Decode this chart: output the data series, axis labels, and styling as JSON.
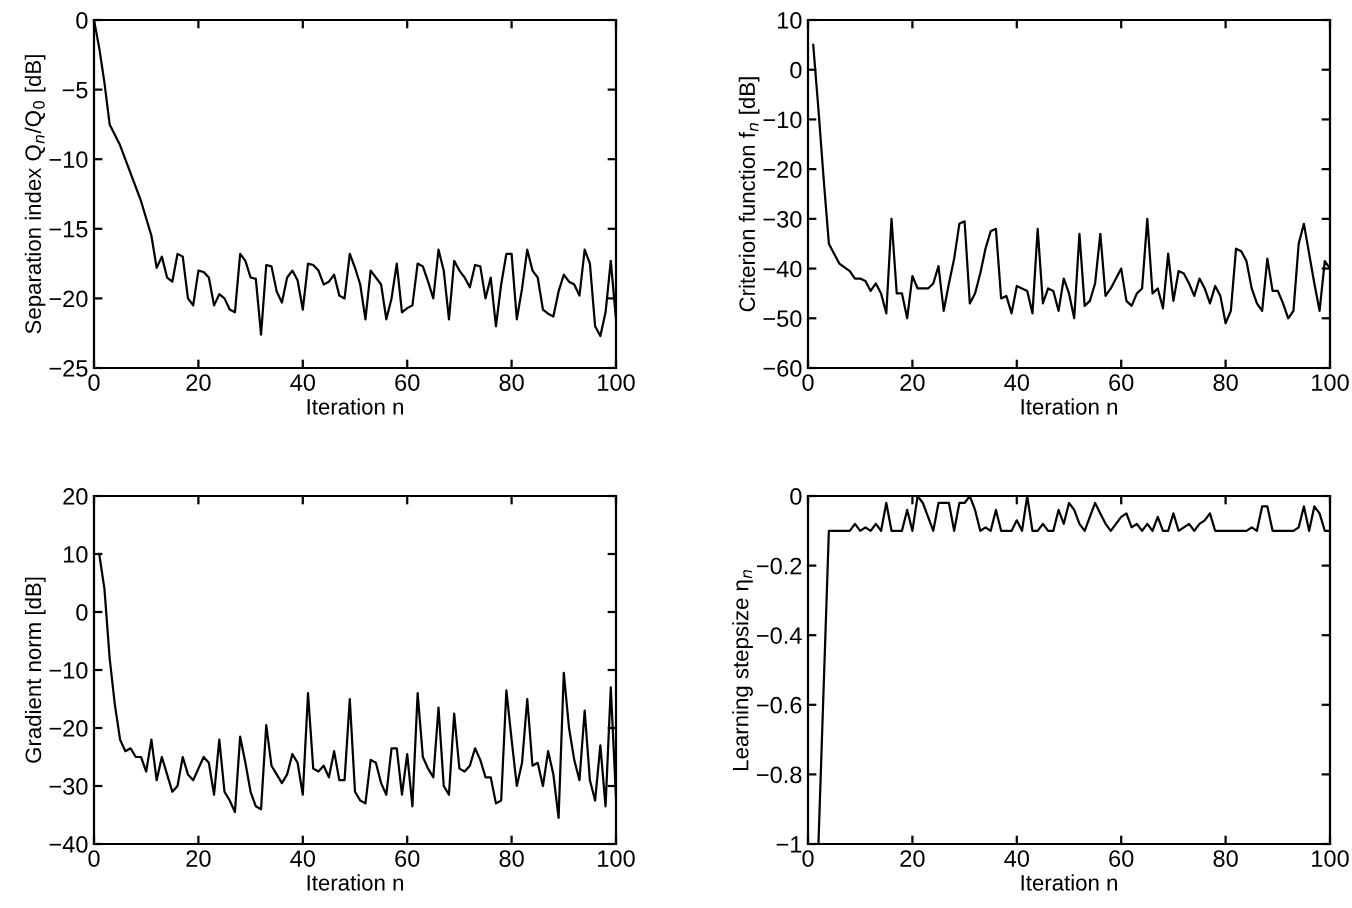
{
  "chart_data": [
    {
      "type": "line",
      "xlabel": "Iteration n",
      "ylabel": "Separation index Q$_{n}$/Q$_{0}$ [dB]",
      "xlim": [
        0,
        100
      ],
      "xticks": [
        0,
        20,
        40,
        60,
        80,
        100
      ],
      "ylim": [
        -25,
        0
      ],
      "yticks": [
        -25,
        -20,
        -15,
        -10,
        -5,
        0
      ],
      "grid": false,
      "series": [
        {
          "color": "#000000",
          "x": [
            0,
            1,
            2,
            3,
            5,
            7,
            9,
            11,
            12,
            13,
            14,
            15,
            16,
            17,
            18,
            19,
            20,
            21,
            22,
            23,
            24,
            25,
            26,
            27,
            28,
            29,
            30,
            31,
            32,
            33,
            34,
            35,
            36,
            37,
            38,
            39,
            40,
            41,
            42,
            43,
            44,
            45,
            46,
            47,
            48,
            49,
            50,
            51,
            52,
            53,
            54,
            55,
            56,
            57,
            58,
            59,
            60,
            61,
            62,
            63,
            64,
            65,
            66,
            67,
            68,
            69,
            70,
            71,
            72,
            73,
            74,
            75,
            76,
            77,
            78,
            79,
            80,
            81,
            82,
            83,
            84,
            85,
            86,
            87,
            88,
            89,
            90,
            91,
            92,
            93,
            94,
            95,
            96,
            97,
            98,
            99,
            100
          ],
          "values": [
            0,
            -2,
            -4.5,
            -7.5,
            -9,
            -11,
            -13,
            -15.5,
            -17.8,
            -17,
            -18.5,
            -18.8,
            -16.8,
            -17,
            -20,
            -20.5,
            -18,
            -18.1,
            -18.5,
            -20.5,
            -19.7,
            -20,
            -20.8,
            -21,
            -16.8,
            -17.3,
            -18.5,
            -18.6,
            -22.6,
            -17.6,
            -17.7,
            -19.5,
            -20.3,
            -18.5,
            -18,
            -18.7,
            -20.8,
            -17.5,
            -17.6,
            -18,
            -19,
            -18.8,
            -18.3,
            -19.8,
            -20,
            -16.8,
            -17.8,
            -19,
            -21.5,
            -18,
            -18.5,
            -19,
            -21.5,
            -20,
            -17.5,
            -21,
            -20.7,
            -20.5,
            -17.5,
            -17.7,
            -18.8,
            -20,
            -16.5,
            -18,
            -21.5,
            -17.3,
            -18,
            -18.5,
            -19.2,
            -17.6,
            -17.7,
            -20,
            -18.5,
            -22,
            -19,
            -16.8,
            -16.8,
            -21.5,
            -19.3,
            -16.5,
            -18,
            -18.5,
            -20.8,
            -21.1,
            -21.3,
            -19.5,
            -18.3,
            -18.8,
            -19,
            -19.8,
            -16.5,
            -17.5,
            -22,
            -22.7,
            -21,
            -17.3,
            -21.5
          ]
        }
      ]
    },
    {
      "type": "line",
      "xlabel": "Iteration n",
      "ylabel": "Criterion function f$_{n}$ [dB]",
      "xlim": [
        0,
        100
      ],
      "xticks": [
        0,
        20,
        40,
        60,
        80,
        100
      ],
      "ylim": [
        -60,
        10
      ],
      "yticks": [
        -60,
        -50,
        -40,
        -30,
        -20,
        -10,
        0,
        10
      ],
      "grid": false,
      "series": [
        {
          "color": "#000000",
          "x": [
            1,
            2,
            3,
            4,
            5,
            6,
            8,
            9,
            10,
            11,
            12,
            13,
            14,
            15,
            16,
            17,
            18,
            19,
            20,
            21,
            22,
            23,
            24,
            25,
            26,
            27,
            28,
            29,
            30,
            31,
            32,
            33,
            34,
            35,
            36,
            37,
            38,
            39,
            40,
            41,
            42,
            43,
            44,
            45,
            46,
            47,
            48,
            49,
            50,
            51,
            52,
            53,
            54,
            55,
            56,
            57,
            58,
            59,
            60,
            61,
            62,
            63,
            64,
            65,
            66,
            67,
            68,
            69,
            70,
            71,
            72,
            73,
            74,
            75,
            76,
            77,
            78,
            79,
            80,
            81,
            82,
            83,
            84,
            85,
            86,
            87,
            88,
            89,
            90,
            91,
            92,
            93,
            94,
            95,
            96,
            97,
            98,
            99,
            100
          ],
          "values": [
            5,
            -8,
            -22,
            -35,
            -37,
            -39,
            -40.5,
            -42,
            -42,
            -42.5,
            -44.5,
            -43,
            -45,
            -49,
            -30,
            -45,
            -45,
            -50,
            -41.5,
            -44,
            -44,
            -44,
            -43,
            -39.5,
            -48.5,
            -43,
            -38,
            -31,
            -30.5,
            -47,
            -45,
            -41,
            -36,
            -32.5,
            -32,
            -46,
            -45.5,
            -49,
            -43.5,
            -44,
            -44.5,
            -49,
            -32,
            -47,
            -44,
            -44.5,
            -48.5,
            -42,
            -45,
            -50,
            -33,
            -47.5,
            -46.5,
            -43,
            -33,
            -45.5,
            -44,
            -42,
            -40,
            -46.5,
            -47.5,
            -45,
            -44,
            -30,
            -45,
            -44,
            -48,
            -37,
            -46.5,
            -40.5,
            -41,
            -43,
            -45.5,
            -42,
            -44,
            -47,
            -43.5,
            -45.5,
            -51,
            -48.5,
            -36,
            -36.5,
            -38.5,
            -44,
            -47,
            -48.5,
            -38,
            -44.5,
            -44.5,
            -47,
            -50,
            -48.5,
            -35,
            -31,
            -37,
            -43,
            -48.5,
            -38.5,
            -40
          ]
        }
      ]
    },
    {
      "type": "line",
      "xlabel": "Iteration n",
      "ylabel": "Gradient norm [dB]",
      "xlim": [
        0,
        100
      ],
      "xticks": [
        0,
        20,
        40,
        60,
        80,
        100
      ],
      "ylim": [
        -40,
        20
      ],
      "yticks": [
        -40,
        -30,
        -20,
        -10,
        0,
        10,
        20
      ],
      "grid": false,
      "series": [
        {
          "color": "#000000",
          "x": [
            1,
            2,
            3,
            4,
            5,
            6,
            7,
            8,
            9,
            10,
            11,
            12,
            13,
            14,
            15,
            16,
            17,
            18,
            19,
            20,
            21,
            22,
            23,
            24,
            25,
            26,
            27,
            28,
            29,
            30,
            31,
            32,
            33,
            34,
            35,
            36,
            37,
            38,
            39,
            40,
            41,
            42,
            43,
            44,
            45,
            46,
            47,
            48,
            49,
            50,
            51,
            52,
            53,
            54,
            55,
            56,
            57,
            58,
            59,
            60,
            61,
            62,
            63,
            64,
            65,
            66,
            67,
            68,
            69,
            70,
            71,
            72,
            73,
            74,
            75,
            76,
            77,
            78,
            79,
            80,
            81,
            82,
            83,
            84,
            85,
            86,
            87,
            88,
            89,
            90,
            91,
            92,
            93,
            94,
            95,
            96,
            97,
            98,
            99,
            100
          ],
          "values": [
            10,
            4,
            -8,
            -16,
            -22,
            -24,
            -23.5,
            -25,
            -25,
            -27.5,
            -22,
            -29,
            -25,
            -28,
            -31,
            -30,
            -25,
            -28,
            -29,
            -27,
            -25,
            -26,
            -31.5,
            -22,
            -31,
            -32.5,
            -34.5,
            -21.5,
            -26,
            -31,
            -33.5,
            -34,
            -19.5,
            -26.5,
            -28,
            -29.5,
            -28,
            -24.5,
            -26,
            -31.5,
            -14,
            -27,
            -27.5,
            -26.5,
            -28.5,
            -24,
            -29,
            -29,
            -15,
            -31,
            -32.5,
            -33,
            -25.5,
            -26,
            -29.5,
            -31.5,
            -23.5,
            -23.5,
            -31.5,
            -24.5,
            -33.5,
            -14,
            -25,
            -27,
            -28.5,
            -16.5,
            -30,
            -31.5,
            -17.5,
            -27,
            -27.5,
            -26.5,
            -23.5,
            -25.5,
            -28.5,
            -28.5,
            -33,
            -32.5,
            -13.5,
            -22,
            -30,
            -26,
            -15,
            -26.5,
            -26,
            -30,
            -24,
            -28,
            -35.5,
            -10.5,
            -20,
            -25.5,
            -29,
            -17,
            -29,
            -32.5,
            -23,
            -33.5,
            -13,
            -32
          ]
        }
      ]
    },
    {
      "type": "line",
      "xlabel": "Iteration n",
      "ylabel": "Learning stepsize η$_{n}$",
      "xlim": [
        0,
        100
      ],
      "xticks": [
        0,
        20,
        40,
        60,
        80,
        100
      ],
      "ylim": [
        -1,
        0
      ],
      "yticks": [
        -1,
        -0.8,
        -0.6,
        -0.4,
        -0.2,
        0
      ],
      "grid": false,
      "series": [
        {
          "color": "#000000",
          "x": [
            2,
            4,
            8,
            9,
            10,
            11,
            12,
            13,
            14,
            15,
            16,
            17,
            18,
            19,
            20,
            21,
            22,
            23,
            24,
            25,
            26,
            27,
            28,
            29,
            30,
            31,
            32,
            33,
            34,
            35,
            36,
            37,
            38,
            39,
            40,
            41,
            42,
            43,
            44,
            45,
            46,
            47,
            48,
            49,
            50,
            51,
            52,
            53,
            54,
            55,
            56,
            57,
            58,
            59,
            60,
            61,
            62,
            63,
            64,
            65,
            66,
            67,
            68,
            69,
            70,
            71,
            72,
            73,
            74,
            75,
            76,
            77,
            78,
            84,
            85,
            86,
            87,
            88,
            89,
            93,
            94,
            95,
            96,
            97,
            98,
            99,
            100
          ],
          "values": [
            -1,
            -0.1,
            -0.1,
            -0.08,
            -0.1,
            -0.09,
            -0.1,
            -0.08,
            -0.1,
            -0.02,
            -0.1,
            -0.1,
            -0.1,
            -0.04,
            -0.1,
            0,
            -0.02,
            -0.06,
            -0.1,
            -0.02,
            -0.02,
            -0.02,
            -0.1,
            -0.02,
            -0.02,
            0,
            -0.04,
            -0.1,
            -0.09,
            -0.1,
            -0.04,
            -0.1,
            -0.1,
            -0.1,
            -0.07,
            -0.1,
            0,
            -0.1,
            -0.1,
            -0.08,
            -0.1,
            -0.1,
            -0.04,
            -0.08,
            -0.02,
            -0.04,
            -0.08,
            -0.1,
            -0.06,
            -0.02,
            -0.05,
            -0.08,
            -0.1,
            -0.08,
            -0.06,
            -0.05,
            -0.09,
            -0.08,
            -0.1,
            -0.08,
            -0.1,
            -0.06,
            -0.1,
            -0.1,
            -0.05,
            -0.1,
            -0.09,
            -0.08,
            -0.1,
            -0.08,
            -0.07,
            -0.05,
            -0.1,
            -0.1,
            -0.09,
            -0.1,
            -0.03,
            -0.03,
            -0.1,
            -0.1,
            -0.09,
            -0.03,
            -0.1,
            -0.03,
            -0.05,
            -0.1,
            -0.1
          ]
        }
      ]
    }
  ]
}
